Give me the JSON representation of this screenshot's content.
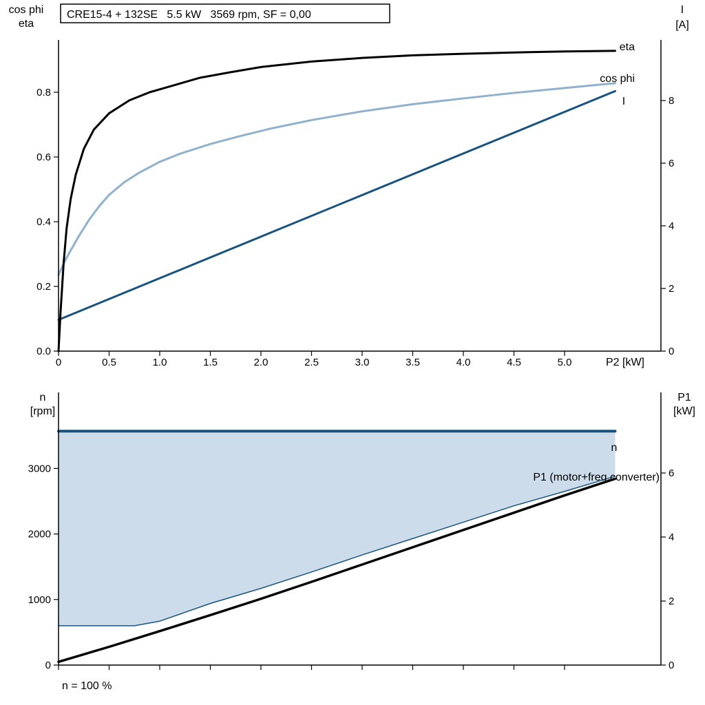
{
  "colors": {
    "black": "#000000",
    "dark_blue": "#17537e",
    "light_blue": "#8fb1cd",
    "area_fill": "#cddcea",
    "axis": "#000000"
  },
  "chart_data": [
    {
      "type": "line",
      "title": "CRE15-4 + 132SE   5.5 kW   3569 rpm, SF = 0,00",
      "xlabel": "P2 [kW]",
      "xlim": [
        0,
        5.95
      ],
      "x_ticks": [
        0,
        0.5,
        1,
        1.5,
        2,
        2.5,
        3,
        3.5,
        4,
        4.5,
        5
      ],
      "x_tick_labels": [
        "0",
        "0.5",
        "1.0",
        "1.5",
        "2.0",
        "2.5",
        "3.0",
        "3.5",
        "4.0",
        "4.5",
        "5.0"
      ],
      "left_axis": {
        "title1": "cos phi",
        "title2": "eta",
        "ticks": [
          0,
          0.2,
          0.4,
          0.6,
          0.8
        ],
        "labels": [
          "0.0",
          "0.2",
          "0.4",
          "0.6",
          "0.8"
        ],
        "range": [
          0,
          0.96
        ]
      },
      "right_axis": {
        "title1": "I",
        "title2": "[A]",
        "ticks": [
          0,
          2,
          4,
          6,
          8
        ],
        "labels": [
          "0",
          "2",
          "4",
          "6",
          "8"
        ],
        "range": [
          0,
          9.9
        ]
      },
      "series": [
        {
          "name": "I",
          "label": "I",
          "color": "dark_blue",
          "axis": "right",
          "width": 3,
          "points": [
            [
              0,
              1.0
            ],
            [
              5.5,
              8.3
            ]
          ]
        },
        {
          "name": "cos-phi",
          "label": "cos phi",
          "color": "light_blue",
          "axis": "left",
          "width": 3,
          "points": [
            [
              0,
              0.235
            ],
            [
              0.05,
              0.27
            ],
            [
              0.1,
              0.3
            ],
            [
              0.2,
              0.355
            ],
            [
              0.3,
              0.405
            ],
            [
              0.4,
              0.447
            ],
            [
              0.5,
              0.483
            ],
            [
              0.65,
              0.522
            ],
            [
              0.8,
              0.552
            ],
            [
              1,
              0.585
            ],
            [
              1.2,
              0.61
            ],
            [
              1.5,
              0.64
            ],
            [
              1.8,
              0.665
            ],
            [
              2.1,
              0.688
            ],
            [
              2.5,
              0.714
            ],
            [
              3,
              0.741
            ],
            [
              3.5,
              0.763
            ],
            [
              4,
              0.781
            ],
            [
              4.5,
              0.798
            ],
            [
              5,
              0.813
            ],
            [
              5.5,
              0.828
            ]
          ]
        },
        {
          "name": "eta",
          "label": "eta",
          "color": "black",
          "axis": "left",
          "width": 3,
          "points": [
            [
              0,
              0
            ],
            [
              0.02,
              0.12
            ],
            [
              0.05,
              0.27
            ],
            [
              0.08,
              0.38
            ],
            [
              0.12,
              0.47
            ],
            [
              0.17,
              0.545
            ],
            [
              0.25,
              0.625
            ],
            [
              0.35,
              0.685
            ],
            [
              0.5,
              0.735
            ],
            [
              0.7,
              0.775
            ],
            [
              0.9,
              0.8
            ],
            [
              1.1,
              0.818
            ],
            [
              1.4,
              0.845
            ],
            [
              1.7,
              0.862
            ],
            [
              2,
              0.878
            ],
            [
              2.5,
              0.895
            ],
            [
              3,
              0.906
            ],
            [
              3.5,
              0.914
            ],
            [
              4,
              0.919
            ],
            [
              4.5,
              0.923
            ],
            [
              5,
              0.926
            ],
            [
              5.5,
              0.928
            ]
          ]
        }
      ]
    },
    {
      "type": "line",
      "x_ticks": [
        0,
        0.5,
        1,
        1.5,
        2,
        2.5,
        3,
        3.5,
        4,
        4.5,
        5
      ],
      "left_axis": {
        "title1": "n",
        "title2": "[rpm]",
        "ticks": [
          0,
          1000,
          2000,
          3000
        ],
        "labels": [
          "0",
          "1000",
          "2000",
          "3000"
        ],
        "range": [
          0,
          4160
        ]
      },
      "right_axis": {
        "title1": "P1",
        "title2": "[kW]",
        "ticks": [
          0,
          2,
          4,
          6
        ],
        "labels": [
          "0",
          "2",
          "4",
          "6"
        ],
        "range": [
          0,
          8.5
        ]
      },
      "area": {
        "color": "area_fill",
        "top": "n",
        "bottom": "n-min"
      },
      "series": [
        {
          "name": "n-min",
          "label": "",
          "color": "dark_blue",
          "axis": "left",
          "width": 1.5,
          "points": [
            [
              0,
              600
            ],
            [
              0.75,
              600
            ],
            [
              1,
              670
            ],
            [
              1.5,
              940
            ],
            [
              2,
              1170
            ],
            [
              2.5,
              1420
            ],
            [
              3,
              1680
            ],
            [
              3.5,
              1930
            ],
            [
              4,
              2180
            ],
            [
              4.5,
              2430
            ],
            [
              5,
              2650
            ],
            [
              5.5,
              2880
            ]
          ]
        },
        {
          "name": "P1",
          "label": "P1 (motor+freq.converter)",
          "color": "black",
          "axis": "right",
          "width": 3.5,
          "points": [
            [
              0,
              0.1
            ],
            [
              0.5,
              0.57
            ],
            [
              1,
              1.06
            ],
            [
              1.5,
              1.56
            ],
            [
              2,
              2.07
            ],
            [
              2.5,
              2.6
            ],
            [
              3,
              3.14
            ],
            [
              3.5,
              3.68
            ],
            [
              4,
              4.22
            ],
            [
              4.5,
              4.76
            ],
            [
              5,
              5.3
            ],
            [
              5.5,
              5.82
            ]
          ]
        },
        {
          "name": "n",
          "label": "n",
          "color": "dark_blue",
          "axis": "left",
          "width": 4,
          "points": [
            [
              0,
              3569
            ],
            [
              5.5,
              3569
            ]
          ]
        }
      ],
      "footer": "n = 100 %"
    }
  ]
}
